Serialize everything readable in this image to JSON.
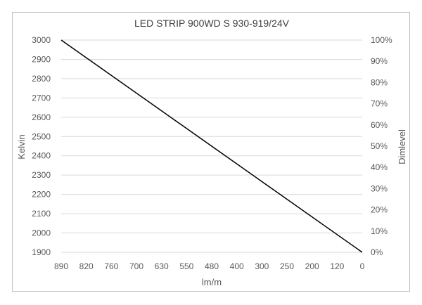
{
  "chart_data": {
    "type": "line",
    "title": "LED STRIP 900WD S 930-919/24V",
    "xlabel": "lm/m",
    "ylabel": "Kelvin",
    "y2label": "Dimlevel",
    "categories": [
      "890",
      "820",
      "760",
      "700",
      "630",
      "550",
      "480",
      "400",
      "300",
      "250",
      "200",
      "120",
      "0"
    ],
    "ylim": [
      1900,
      3000
    ],
    "yticks": [
      1900,
      2000,
      2100,
      2200,
      2300,
      2400,
      2500,
      2600,
      2700,
      2800,
      2900,
      3000
    ],
    "y2lim": [
      0,
      100
    ],
    "y2ticks": [
      "0%",
      "10%",
      "20%",
      "30%",
      "40%",
      "50%",
      "60%",
      "70%",
      "80%",
      "90%",
      "100%"
    ],
    "grid": true,
    "series": [
      {
        "x": [
          890,
          0
        ],
        "y": [
          3000,
          1900
        ]
      }
    ],
    "colors": {
      "line": "#000000",
      "grid": "#d9d9d9",
      "text": "#595959"
    }
  }
}
